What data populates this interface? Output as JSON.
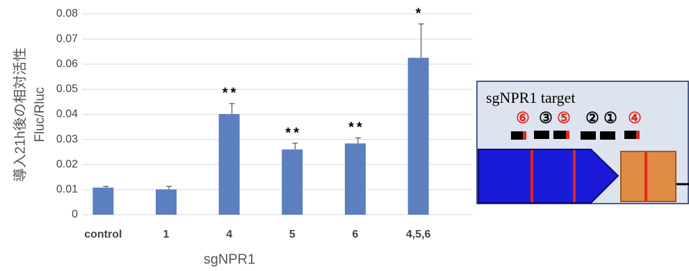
{
  "chart_data": {
    "type": "bar",
    "y_label": [
      "導入21h後の相対活性",
      "Fluc/Rluc"
    ],
    "x_label": "sgNPR1",
    "categories": [
      "control",
      "1",
      "4",
      "5",
      "6",
      "4,5,6"
    ],
    "values": [
      0.0108,
      0.0101,
      0.0401,
      0.026,
      0.0284,
      0.0625
    ],
    "errors": [
      0.0005,
      0.0012,
      0.0042,
      0.0025,
      0.0022,
      0.0135
    ],
    "annotations": [
      null,
      null,
      "**",
      "**",
      "**",
      "*"
    ],
    "color": "#5b7fbf",
    "ylim": [
      0,
      0.08
    ],
    "yticks": [
      0,
      0.01,
      0.02,
      0.03,
      0.04,
      0.05,
      0.06,
      0.07,
      0.08
    ],
    "grid": true
  },
  "diagram": {
    "title": "sgNPR1 target",
    "sites": [
      "⑥",
      "③",
      "⑤",
      "②",
      "①",
      "④"
    ]
  }
}
